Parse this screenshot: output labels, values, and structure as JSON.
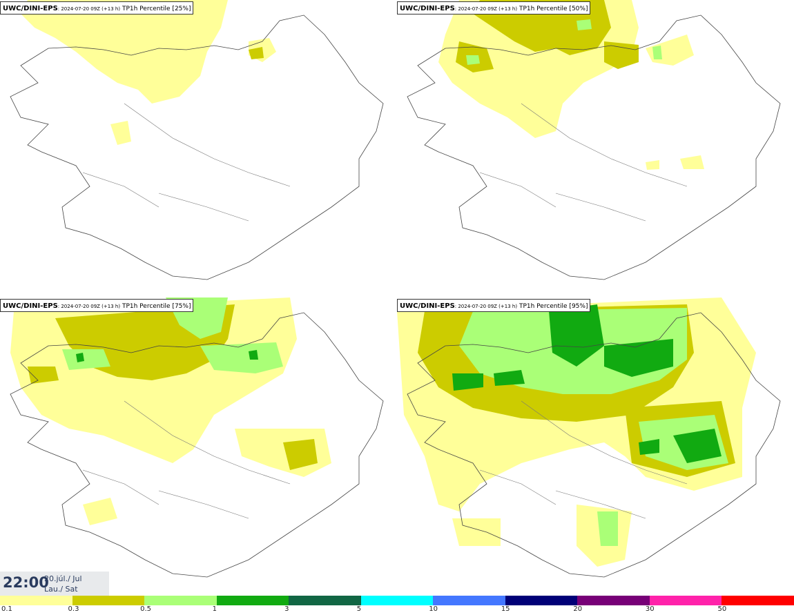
{
  "panels": [
    {
      "model": "UWC/DINI-EPS",
      "run": ": 2024-07-20 09Z (+13 h)",
      "field": " TP1h Percentile [25%]"
    },
    {
      "model": "UWC/DINI-EPS",
      "run": ": 2024-07-20 09Z (+13 h)",
      "field": " TP1h Percentile [50%]"
    },
    {
      "model": "UWC/DINI-EPS",
      "run": ": 2024-07-20 09Z (+13 h)",
      "field": " TP1h Percentile [75%]"
    },
    {
      "model": "UWC/DINI-EPS",
      "run": ": 2024-07-20 09Z (+13 h)",
      "field": " TP1h Percentile [95%]"
    }
  ],
  "footer": {
    "time": "22:00",
    "date_line1": "20.júl./ Jul",
    "date_line2": "Lau./ Sat"
  },
  "legend": {
    "colors": [
      "#ffff99",
      "#cccc00",
      "#aaff77",
      "#11aa11",
      "#116644",
      "#00ffff",
      "#4477ff",
      "#000077",
      "#770077",
      "#ff22aa",
      "#ff0000"
    ],
    "ticks": [
      "0.1",
      "0.3",
      "0.5",
      "1",
      "3",
      "5",
      "10",
      "15",
      "20",
      "30",
      "50"
    ]
  }
}
